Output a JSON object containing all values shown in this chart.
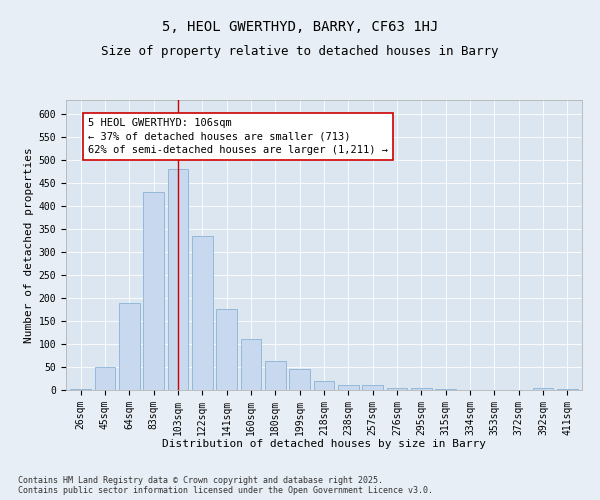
{
  "title": "5, HEOL GWERTHYD, BARRY, CF63 1HJ",
  "subtitle": "Size of property relative to detached houses in Barry",
  "xlabel": "Distribution of detached houses by size in Barry",
  "ylabel": "Number of detached properties",
  "categories": [
    "26sqm",
    "45sqm",
    "64sqm",
    "83sqm",
    "103sqm",
    "122sqm",
    "141sqm",
    "160sqm",
    "180sqm",
    "199sqm",
    "218sqm",
    "238sqm",
    "257sqm",
    "276sqm",
    "295sqm",
    "315sqm",
    "334sqm",
    "353sqm",
    "372sqm",
    "392sqm",
    "411sqm"
  ],
  "values": [
    2,
    50,
    190,
    430,
    480,
    335,
    175,
    110,
    62,
    45,
    20,
    10,
    10,
    5,
    5,
    3,
    1,
    1,
    0,
    5,
    2
  ],
  "bar_color": "#c8d8ee",
  "bar_edge_color": "#7aaad0",
  "vline_index": 4,
  "vline_color": "#cc0000",
  "annotation_line1": "5 HEOL GWERTHYD: 106sqm",
  "annotation_line2": "← 37% of detached houses are smaller (713)",
  "annotation_line3": "62% of semi-detached houses are larger (1,211) →",
  "ylim": [
    0,
    630
  ],
  "yticks": [
    0,
    50,
    100,
    150,
    200,
    250,
    300,
    350,
    400,
    450,
    500,
    550,
    600
  ],
  "background_color": "#e8eef5",
  "plot_background": "#dce6f0",
  "footer_text": "Contains HM Land Registry data © Crown copyright and database right 2025.\nContains public sector information licensed under the Open Government Licence v3.0.",
  "title_fontsize": 10,
  "subtitle_fontsize": 9,
  "axis_label_fontsize": 8,
  "tick_fontsize": 7,
  "annotation_fontsize": 7.5,
  "footer_fontsize": 6
}
